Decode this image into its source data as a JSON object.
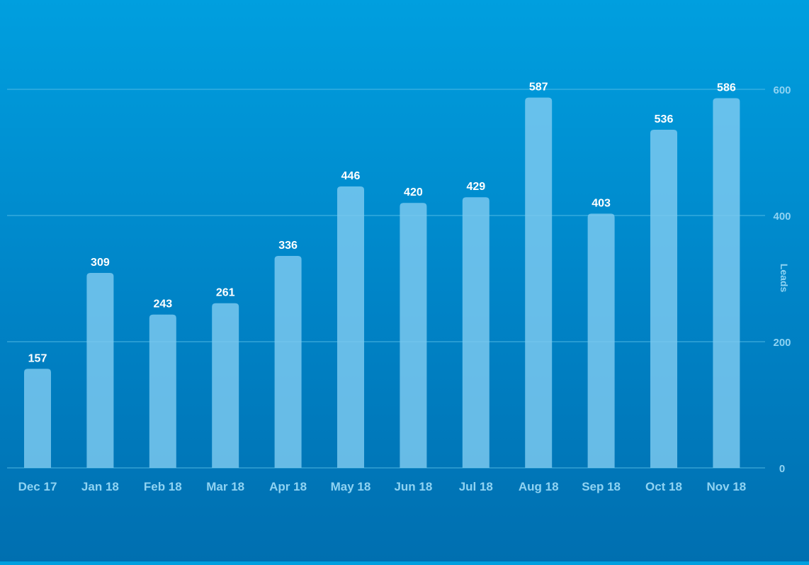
{
  "chart_data": {
    "type": "bar",
    "categories": [
      "Dec 17",
      "Jan 18",
      "Feb 18",
      "Mar 18",
      "Apr 18",
      "May 18",
      "Jun 18",
      "Jul 18",
      "Aug 18",
      "Sep 18",
      "Oct 18",
      "Nov 18"
    ],
    "values": [
      157,
      309,
      243,
      261,
      336,
      446,
      420,
      429,
      587,
      403,
      536,
      586
    ],
    "title": "",
    "xlabel": "",
    "ylabel": "Leads",
    "ylim": [
      0,
      600
    ],
    "yticks": [
      0,
      200,
      400,
      600
    ],
    "y_axis_side": "right",
    "grid": true,
    "data_labels": true,
    "colors": {
      "bar": "#7ecbf0",
      "gridline": "#5cbfe8",
      "tick_label": "#8fd3f2",
      "data_label": "#ffffff"
    }
  }
}
